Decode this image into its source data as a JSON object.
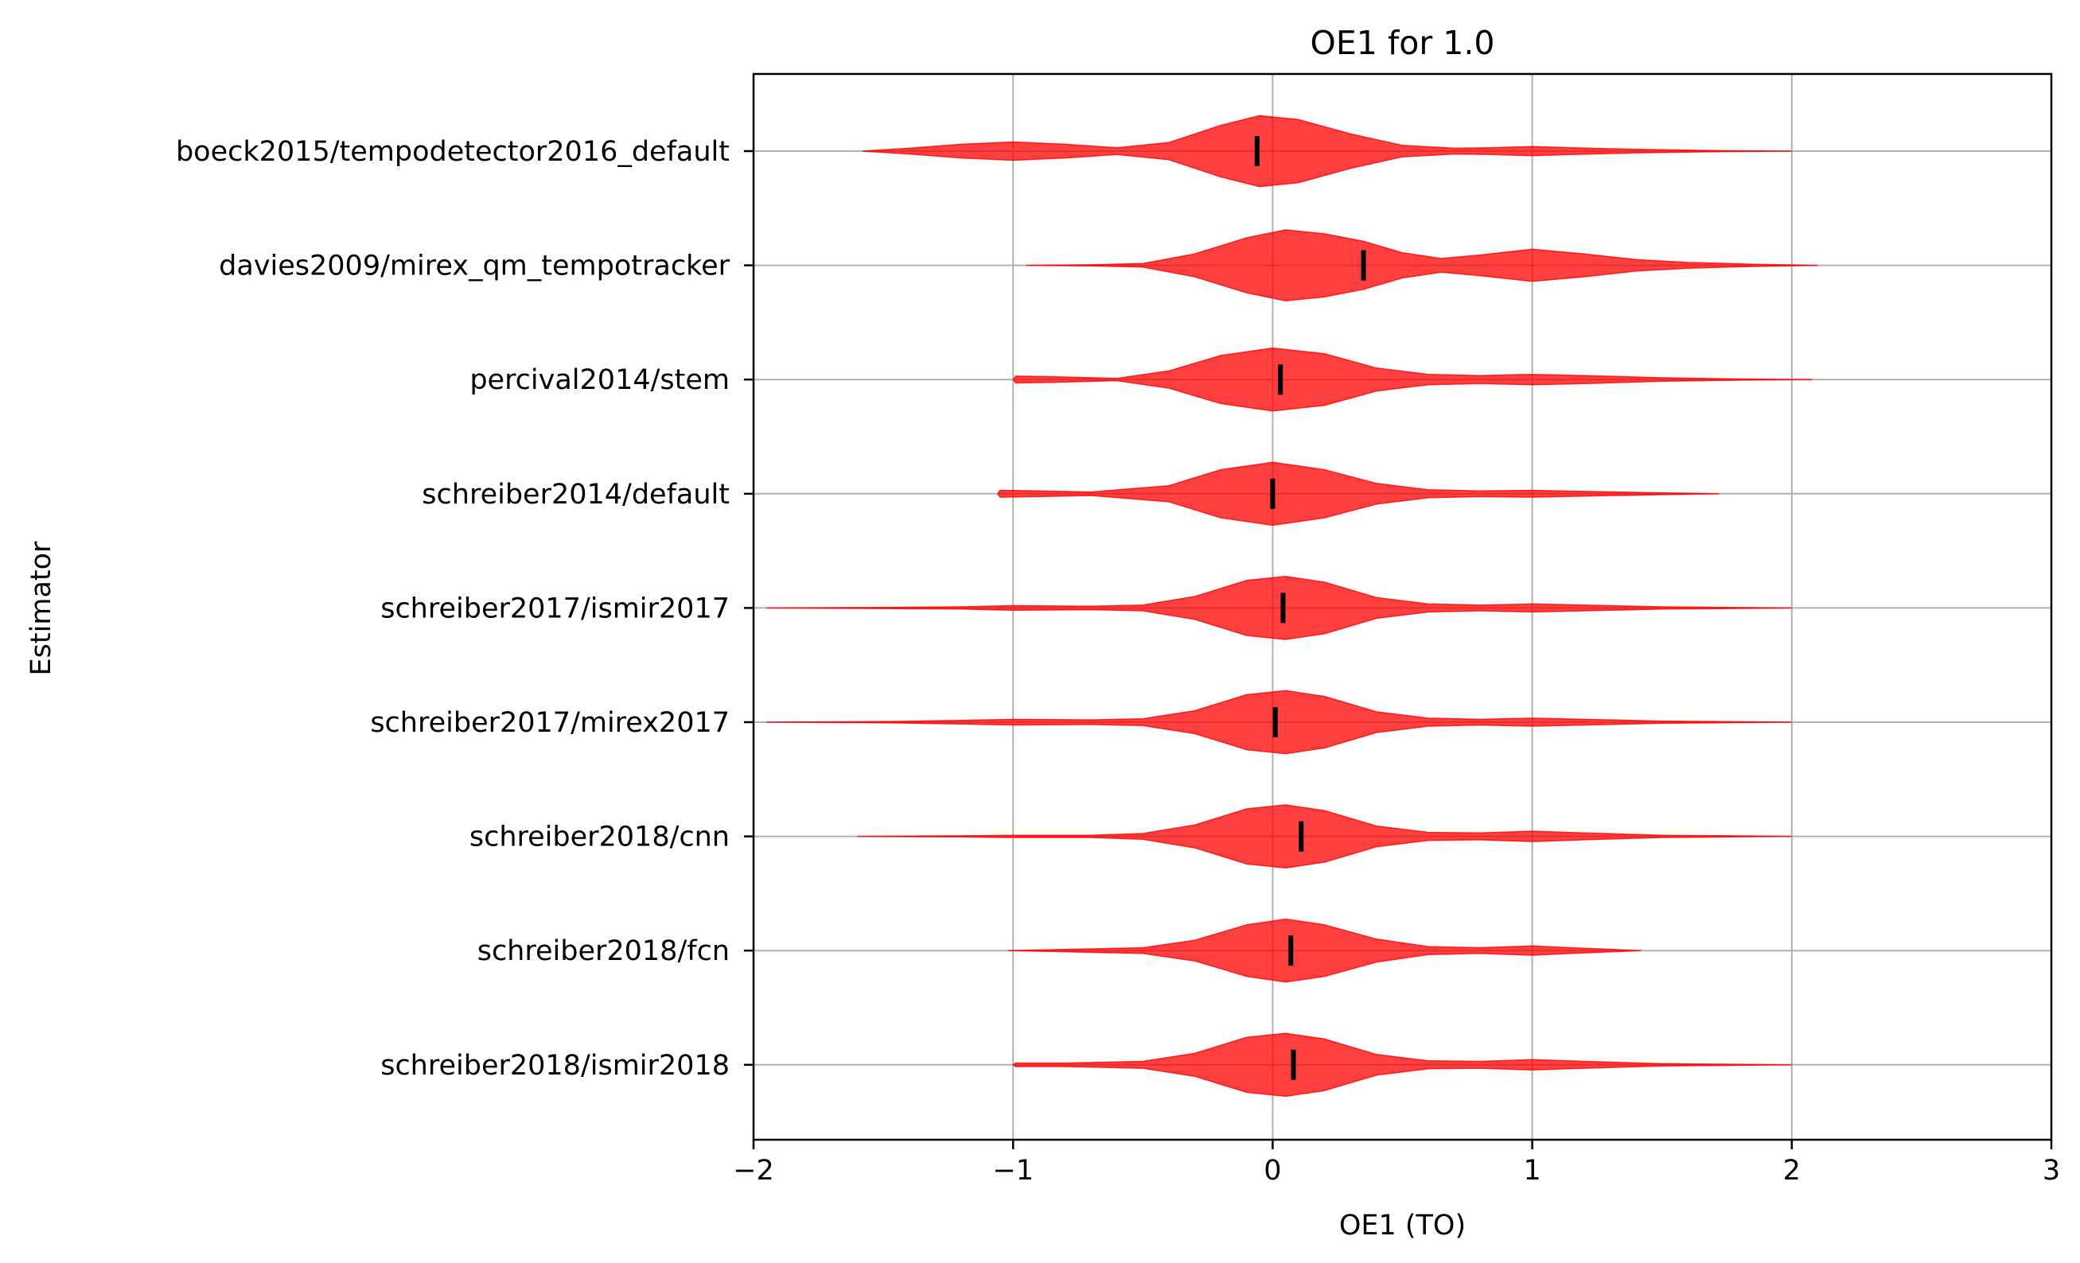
{
  "chart_data": {
    "type": "violin",
    "title": "OE1 for 1.0",
    "xlabel": "OE1 (TO)",
    "ylabel": "Estimator",
    "xlim": [
      -2,
      3
    ],
    "xticks": [
      -2,
      -1,
      0,
      1,
      2,
      3
    ],
    "xtick_labels": [
      "−2",
      "−1",
      "0",
      "1",
      "2",
      "3"
    ],
    "grid": true,
    "color": "#ff0000",
    "fill_opacity": 0.75,
    "median_color": "#000000",
    "categories": [
      "boeck2015/tempodetector2016_default",
      "davies2009/mirex_qm_tempotracker",
      "percival2014/stem",
      "schreiber2014/default",
      "schreiber2017/ismir2017",
      "schreiber2017/mirex2017",
      "schreiber2018/cnn",
      "schreiber2018/fcn",
      "schreiber2018/ismir2018"
    ],
    "violins": [
      {
        "min": -1.58,
        "max": 2.0,
        "median": -0.06,
        "density": [
          [
            -1.58,
            0.0
          ],
          [
            -1.4,
            0.05
          ],
          [
            -1.2,
            0.12
          ],
          [
            -1.0,
            0.16
          ],
          [
            -0.8,
            0.12
          ],
          [
            -0.6,
            0.06
          ],
          [
            -0.4,
            0.15
          ],
          [
            -0.2,
            0.45
          ],
          [
            -0.05,
            0.62
          ],
          [
            0.1,
            0.55
          ],
          [
            0.3,
            0.3
          ],
          [
            0.5,
            0.1
          ],
          [
            0.7,
            0.05
          ],
          [
            0.85,
            0.06
          ],
          [
            1.0,
            0.08
          ],
          [
            1.15,
            0.06
          ],
          [
            1.4,
            0.03
          ],
          [
            1.7,
            0.01
          ],
          [
            2.0,
            0.0
          ]
        ]
      },
      {
        "min": -0.95,
        "max": 2.1,
        "median": 0.35,
        "density": [
          [
            -0.95,
            0.0
          ],
          [
            -0.7,
            0.01
          ],
          [
            -0.5,
            0.03
          ],
          [
            -0.3,
            0.2
          ],
          [
            -0.1,
            0.48
          ],
          [
            0.05,
            0.62
          ],
          [
            0.2,
            0.55
          ],
          [
            0.35,
            0.42
          ],
          [
            0.5,
            0.22
          ],
          [
            0.65,
            0.12
          ],
          [
            0.8,
            0.18
          ],
          [
            1.0,
            0.28
          ],
          [
            1.2,
            0.2
          ],
          [
            1.4,
            0.1
          ],
          [
            1.6,
            0.05
          ],
          [
            1.85,
            0.02
          ],
          [
            2.1,
            0.0
          ]
        ]
      },
      {
        "min": -1.0,
        "max": 2.08,
        "median": 0.03,
        "density": [
          [
            -1.0,
            0.0
          ],
          [
            -0.99,
            0.06
          ],
          [
            -0.85,
            0.05
          ],
          [
            -0.6,
            0.02
          ],
          [
            -0.4,
            0.15
          ],
          [
            -0.2,
            0.42
          ],
          [
            0.0,
            0.55
          ],
          [
            0.2,
            0.45
          ],
          [
            0.4,
            0.2
          ],
          [
            0.6,
            0.09
          ],
          [
            0.8,
            0.07
          ],
          [
            1.0,
            0.09
          ],
          [
            1.2,
            0.07
          ],
          [
            1.5,
            0.03
          ],
          [
            1.8,
            0.01
          ],
          [
            2.08,
            0.0
          ]
        ]
      },
      {
        "min": -1.06,
        "max": 1.72,
        "median": 0.0,
        "density": [
          [
            -1.06,
            0.0
          ],
          [
            -1.05,
            0.06
          ],
          [
            -0.9,
            0.05
          ],
          [
            -0.7,
            0.03
          ],
          [
            -0.4,
            0.14
          ],
          [
            -0.2,
            0.42
          ],
          [
            0.0,
            0.55
          ],
          [
            0.2,
            0.42
          ],
          [
            0.4,
            0.18
          ],
          [
            0.6,
            0.07
          ],
          [
            0.8,
            0.05
          ],
          [
            1.0,
            0.06
          ],
          [
            1.2,
            0.04
          ],
          [
            1.45,
            0.02
          ],
          [
            1.72,
            0.0
          ]
        ]
      },
      {
        "min": -1.95,
        "max": 2.0,
        "median": 0.04,
        "density": [
          [
            -1.95,
            0.0
          ],
          [
            -1.5,
            0.01
          ],
          [
            -1.2,
            0.02
          ],
          [
            -1.0,
            0.04
          ],
          [
            -0.7,
            0.03
          ],
          [
            -0.5,
            0.05
          ],
          [
            -0.3,
            0.2
          ],
          [
            -0.1,
            0.48
          ],
          [
            0.05,
            0.55
          ],
          [
            0.2,
            0.45
          ],
          [
            0.4,
            0.18
          ],
          [
            0.6,
            0.07
          ],
          [
            0.8,
            0.05
          ],
          [
            1.0,
            0.07
          ],
          [
            1.2,
            0.05
          ],
          [
            1.5,
            0.02
          ],
          [
            2.0,
            0.0
          ]
        ]
      },
      {
        "min": -1.95,
        "max": 2.0,
        "median": 0.01,
        "density": [
          [
            -1.95,
            0.0
          ],
          [
            -1.5,
            0.01
          ],
          [
            -1.2,
            0.03
          ],
          [
            -1.0,
            0.05
          ],
          [
            -0.7,
            0.04
          ],
          [
            -0.5,
            0.06
          ],
          [
            -0.3,
            0.2
          ],
          [
            -0.1,
            0.48
          ],
          [
            0.05,
            0.55
          ],
          [
            0.2,
            0.45
          ],
          [
            0.4,
            0.18
          ],
          [
            0.6,
            0.07
          ],
          [
            0.8,
            0.05
          ],
          [
            1.0,
            0.07
          ],
          [
            1.2,
            0.05
          ],
          [
            1.5,
            0.02
          ],
          [
            2.0,
            0.0
          ]
        ]
      },
      {
        "min": -1.6,
        "max": 2.0,
        "median": 0.11,
        "density": [
          [
            -1.6,
            0.0
          ],
          [
            -1.2,
            0.01
          ],
          [
            -1.0,
            0.02
          ],
          [
            -0.7,
            0.02
          ],
          [
            -0.5,
            0.05
          ],
          [
            -0.3,
            0.2
          ],
          [
            -0.1,
            0.48
          ],
          [
            0.05,
            0.55
          ],
          [
            0.2,
            0.45
          ],
          [
            0.4,
            0.18
          ],
          [
            0.6,
            0.07
          ],
          [
            0.8,
            0.06
          ],
          [
            1.0,
            0.09
          ],
          [
            1.2,
            0.06
          ],
          [
            1.5,
            0.02
          ],
          [
            2.0,
            0.0
          ]
        ]
      },
      {
        "min": -1.02,
        "max": 1.42,
        "median": 0.07,
        "density": [
          [
            -1.02,
            0.0
          ],
          [
            -0.8,
            0.02
          ],
          [
            -0.5,
            0.05
          ],
          [
            -0.3,
            0.18
          ],
          [
            -0.1,
            0.45
          ],
          [
            0.05,
            0.55
          ],
          [
            0.2,
            0.45
          ],
          [
            0.4,
            0.2
          ],
          [
            0.6,
            0.07
          ],
          [
            0.8,
            0.05
          ],
          [
            1.0,
            0.08
          ],
          [
            1.15,
            0.05
          ],
          [
            1.42,
            0.0
          ]
        ]
      },
      {
        "min": -1.0,
        "max": 2.0,
        "median": 0.08,
        "density": [
          [
            -1.0,
            0.0
          ],
          [
            -0.99,
            0.03
          ],
          [
            -0.8,
            0.03
          ],
          [
            -0.5,
            0.06
          ],
          [
            -0.3,
            0.2
          ],
          [
            -0.1,
            0.48
          ],
          [
            0.05,
            0.55
          ],
          [
            0.2,
            0.45
          ],
          [
            0.4,
            0.18
          ],
          [
            0.6,
            0.07
          ],
          [
            0.8,
            0.06
          ],
          [
            1.0,
            0.09
          ],
          [
            1.2,
            0.06
          ],
          [
            1.5,
            0.02
          ],
          [
            2.0,
            0.0
          ]
        ]
      }
    ]
  }
}
